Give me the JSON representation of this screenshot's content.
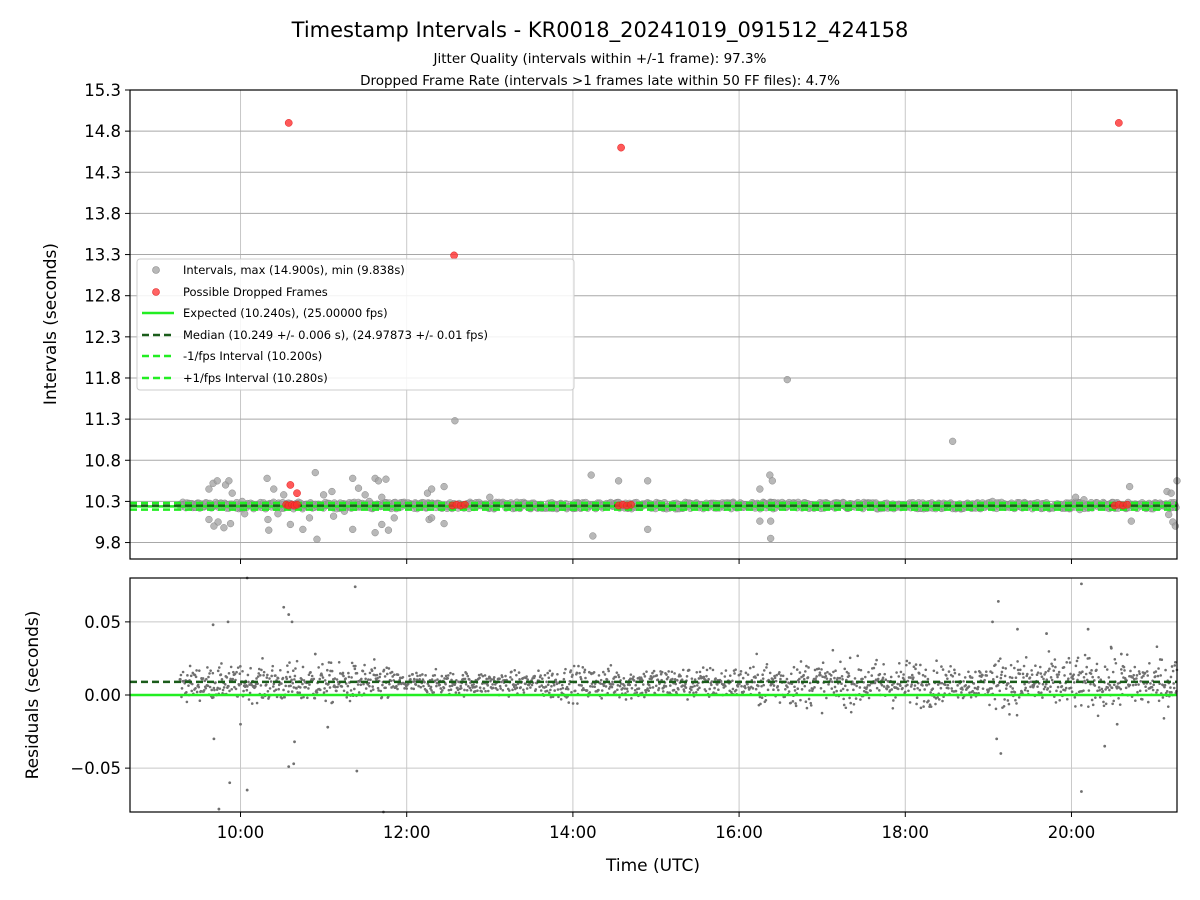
{
  "chart_data": [
    {
      "type": "scatter",
      "title": "Timestamp Intervals - KR0018_20241019_091512_424158",
      "subtitle_lines": [
        "Jitter Quality (intervals within +/-1 frame): 97.3%",
        "Dropped Frame Rate (intervals >1 frames late within 50 FF files): 4.7%"
      ],
      "xlabel": "",
      "ylabel": "Intervals (seconds)",
      "xlim": [
        8.67,
        21.27
      ],
      "ylim": [
        9.6,
        15.3
      ],
      "y_ticks": [
        9.8,
        10.3,
        10.8,
        11.3,
        11.8,
        12.3,
        12.8,
        13.3,
        13.8,
        14.3,
        14.8,
        15.3
      ],
      "y_tick_labels": [
        "9.8",
        "10.3",
        "10.8",
        "11.3",
        "11.8",
        "12.3",
        "12.8",
        "13.3",
        "13.8",
        "14.3",
        "14.8",
        "15.3"
      ],
      "grid": true,
      "legend_position": "center-left",
      "x_range_of_data": [
        9.27,
        21.27
      ],
      "series": [
        {
          "name": "Intervals, max (14.900s), min (9.838s)",
          "kind": "scatter",
          "color": "#a0a0a0",
          "bulk_band": [
            10.21,
            10.29
          ],
          "outliers": [
            [
              9.62,
              10.45
            ],
            [
              9.67,
              10.52
            ],
            [
              9.72,
              10.55
            ],
            [
              9.82,
              10.5
            ],
            [
              9.86,
              10.55
            ],
            [
              9.9,
              10.4
            ],
            [
              9.62,
              10.08
            ],
            [
              9.68,
              10.0
            ],
            [
              9.73,
              10.05
            ],
            [
              9.8,
              9.98
            ],
            [
              9.88,
              10.03
            ],
            [
              9.95,
              10.22
            ],
            [
              10.02,
              10.3
            ],
            [
              10.05,
              10.15
            ],
            [
              10.32,
              10.58
            ],
            [
              10.4,
              10.45
            ],
            [
              10.52,
              10.38
            ],
            [
              10.33,
              10.08
            ],
            [
              10.34,
              9.95
            ],
            [
              10.45,
              10.15
            ],
            [
              10.6,
              10.02
            ],
            [
              10.75,
              9.96
            ],
            [
              10.92,
              9.84
            ],
            [
              10.83,
              10.1
            ],
            [
              10.9,
              10.65
            ],
            [
              11.0,
              10.38
            ],
            [
              11.1,
              10.42
            ],
            [
              11.2,
              10.28
            ],
            [
              11.35,
              10.58
            ],
            [
              11.42,
              10.46
            ],
            [
              11.5,
              10.38
            ],
            [
              11.62,
              10.58
            ],
            [
              11.66,
              10.55
            ],
            [
              11.75,
              10.57
            ],
            [
              11.7,
              10.35
            ],
            [
              11.55,
              10.3
            ],
            [
              11.12,
              10.12
            ],
            [
              11.25,
              10.18
            ],
            [
              11.35,
              9.96
            ],
            [
              11.62,
              9.92
            ],
            [
              11.7,
              10.02
            ],
            [
              11.78,
              9.95
            ],
            [
              11.85,
              10.1
            ],
            [
              12.25,
              10.4
            ],
            [
              12.3,
              10.45
            ],
            [
              12.45,
              10.48
            ],
            [
              12.27,
              10.08
            ],
            [
              12.3,
              10.1
            ],
            [
              12.45,
              10.03
            ],
            [
              13.0,
              10.35
            ],
            [
              12.58,
              11.28
            ],
            [
              14.22,
              10.62
            ],
            [
              14.55,
              10.55
            ],
            [
              14.9,
              10.55
            ],
            [
              14.24,
              9.88
            ],
            [
              14.9,
              9.96
            ],
            [
              16.25,
              10.45
            ],
            [
              16.37,
              10.62
            ],
            [
              16.4,
              10.55
            ],
            [
              16.25,
              10.06
            ],
            [
              16.38,
              10.06
            ],
            [
              16.38,
              9.85
            ],
            [
              16.58,
              11.78
            ],
            [
              18.57,
              11.03
            ],
            [
              19.05,
              10.3
            ],
            [
              19.1,
              10.28
            ],
            [
              20.05,
              10.35
            ],
            [
              20.1,
              10.28
            ],
            [
              20.1,
              10.2
            ],
            [
              20.15,
              10.32
            ],
            [
              20.7,
              10.48
            ],
            [
              20.72,
              10.06
            ],
            [
              21.15,
              10.42
            ],
            [
              21.17,
              10.14
            ],
            [
              21.2,
              10.4
            ],
            [
              21.22,
              10.05
            ],
            [
              21.25,
              10.0
            ],
            [
              21.27,
              10.55
            ]
          ]
        },
        {
          "name": "Possible Dropped Frames",
          "kind": "scatter",
          "color": "#ff3030",
          "points": [
            [
              10.58,
              14.9
            ],
            [
              14.58,
              14.6
            ],
            [
              20.57,
              14.9
            ],
            [
              12.57,
              13.29
            ],
            [
              10.6,
              10.5
            ],
            [
              10.68,
              10.4
            ],
            [
              10.55,
              10.26
            ],
            [
              10.58,
              10.25
            ],
            [
              10.62,
              10.26
            ],
            [
              10.65,
              10.25
            ],
            [
              10.68,
              10.26
            ],
            [
              12.55,
              10.25
            ],
            [
              12.6,
              10.26
            ],
            [
              12.65,
              10.25
            ],
            [
              12.7,
              10.26
            ],
            [
              14.55,
              10.25
            ],
            [
              14.6,
              10.26
            ],
            [
              14.65,
              10.25
            ],
            [
              14.7,
              10.26
            ],
            [
              20.52,
              10.25
            ],
            [
              20.57,
              10.26
            ],
            [
              20.62,
              10.25
            ],
            [
              20.67,
              10.26
            ]
          ]
        },
        {
          "name": "Expected (10.240s), (25.00000 fps)",
          "kind": "hline",
          "y": 10.24,
          "color": "#22ee22",
          "style": "solid"
        },
        {
          "name": "Median (10.249 +/- 0.006 s), (24.97873 +/- 0.01 fps)",
          "kind": "hline",
          "y": 10.249,
          "color": "#1a5c1a",
          "style": "dashed"
        },
        {
          "name": "-1/fps Interval (10.200s)",
          "kind": "hline",
          "y": 10.2,
          "color": "#22ee22",
          "style": "dashed"
        },
        {
          "name": "+1/fps Interval (10.280s)",
          "kind": "hline",
          "y": 10.28,
          "color": "#22ee22",
          "style": "dashed"
        }
      ]
    },
    {
      "type": "scatter",
      "title": "",
      "xlabel": "Time (UTC)",
      "ylabel": "Residuals (seconds)",
      "xlim": [
        8.67,
        21.27
      ],
      "ylim": [
        -0.08,
        0.08
      ],
      "x_ticks": [
        10,
        12,
        14,
        16,
        18,
        20
      ],
      "x_tick_labels": [
        "10:00",
        "12:00",
        "14:00",
        "16:00",
        "18:00",
        "20:00"
      ],
      "y_ticks": [
        -0.05,
        0.0,
        0.05
      ],
      "y_tick_labels": [
        "−0.05",
        "0.00",
        "0.05"
      ],
      "grid": true,
      "series": [
        {
          "name": "Residuals",
          "kind": "scatter",
          "color": "#707070",
          "bulk_range": [
            9.27,
            21.27
          ],
          "bulk_center": 0.008,
          "bulk_spread_segments": [
            [
              9.27,
              10.2,
              0.01
            ],
            [
              10.2,
              11.8,
              0.012
            ],
            [
              11.8,
              13.6,
              0.007
            ],
            [
              13.6,
              16.2,
              0.01
            ],
            [
              16.2,
              18.4,
              0.014
            ],
            [
              18.4,
              19.0,
              0.01
            ],
            [
              19.0,
              21.27,
              0.016
            ]
          ],
          "outliers": [
            [
              9.67,
              0.048
            ],
            [
              9.68,
              -0.03
            ],
            [
              9.74,
              -0.078
            ],
            [
              9.85,
              0.05
            ],
            [
              9.87,
              -0.06
            ],
            [
              10.0,
              -0.02
            ],
            [
              10.08,
              -0.065
            ],
            [
              10.08,
              0.08
            ],
            [
              10.52,
              0.06
            ],
            [
              10.58,
              0.055
            ],
            [
              10.62,
              0.05
            ],
            [
              10.58,
              -0.049
            ],
            [
              10.64,
              -0.047
            ],
            [
              10.65,
              -0.032
            ],
            [
              10.9,
              0.028
            ],
            [
              11.05,
              -0.022
            ],
            [
              11.38,
              0.074
            ],
            [
              11.4,
              -0.052
            ],
            [
              11.72,
              -0.08
            ],
            [
              19.05,
              0.05
            ],
            [
              19.12,
              0.064
            ],
            [
              19.1,
              -0.03
            ],
            [
              19.15,
              -0.04
            ],
            [
              19.35,
              0.045
            ],
            [
              19.7,
              0.042
            ],
            [
              20.12,
              0.076
            ],
            [
              20.12,
              -0.066
            ],
            [
              20.2,
              0.045
            ],
            [
              20.4,
              -0.035
            ],
            [
              20.48,
              0.032
            ],
            [
              20.55,
              -0.02
            ],
            [
              20.6,
              0.028
            ]
          ]
        },
        {
          "name": "Expected",
          "kind": "hline",
          "y": 0.0,
          "color": "#22ee22",
          "style": "solid"
        },
        {
          "name": "Median",
          "kind": "hline",
          "y": 0.009,
          "color": "#1a5c1a",
          "style": "dashed"
        }
      ]
    }
  ]
}
